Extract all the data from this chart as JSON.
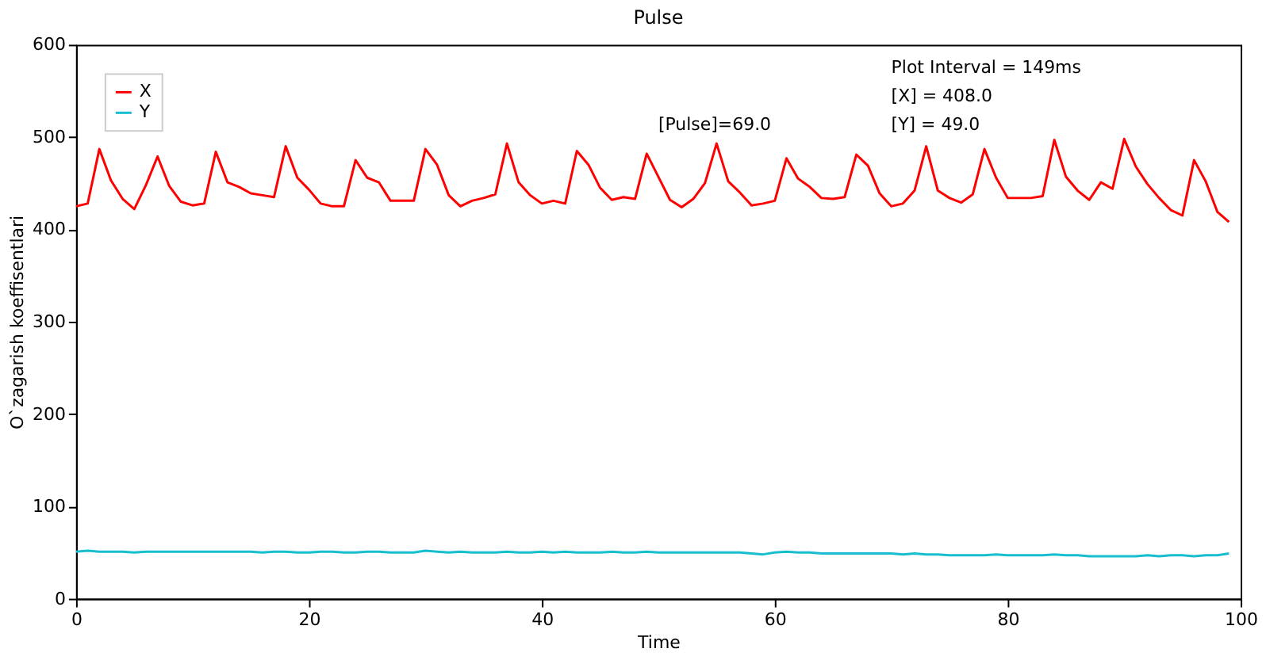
{
  "chart_data": {
    "type": "line",
    "title": "Pulse",
    "xlabel": "Time",
    "ylabel": "O`zagarish koeffisentlari",
    "x": [
      0,
      1,
      2,
      3,
      4,
      5,
      6,
      7,
      8,
      9,
      10,
      11,
      12,
      13,
      14,
      15,
      16,
      17,
      18,
      19,
      20,
      21,
      22,
      23,
      24,
      25,
      26,
      27,
      28,
      29,
      30,
      31,
      32,
      33,
      34,
      35,
      36,
      37,
      38,
      39,
      40,
      41,
      42,
      43,
      44,
      45,
      46,
      47,
      48,
      49,
      50,
      51,
      52,
      53,
      54,
      55,
      56,
      57,
      58,
      59,
      60,
      61,
      62,
      63,
      64,
      65,
      66,
      67,
      68,
      69,
      70,
      71,
      72,
      73,
      74,
      75,
      76,
      77,
      78,
      79,
      80,
      81,
      82,
      83,
      84,
      85,
      86,
      87,
      88,
      89,
      90,
      91,
      92,
      93,
      94,
      95,
      96,
      97,
      98,
      99
    ],
    "series": [
      {
        "name": "X",
        "color": "#ff0000",
        "values": [
          425,
          428,
          487,
          453,
          433,
          422,
          448,
          479,
          447,
          430,
          426,
          428,
          484,
          451,
          446,
          439,
          437,
          435,
          490,
          456,
          443,
          428,
          425,
          425,
          475,
          456,
          451,
          431,
          431,
          431,
          487,
          470,
          437,
          425,
          431,
          434,
          438,
          493,
          451,
          437,
          428,
          431,
          428,
          485,
          470,
          445,
          432,
          435,
          433,
          482,
          457,
          432,
          424,
          433,
          450,
          493,
          452,
          440,
          426,
          428,
          431,
          477,
          455,
          446,
          434,
          433,
          435,
          481,
          469,
          439,
          425,
          428,
          442,
          490,
          442,
          434,
          429,
          438,
          487,
          456,
          434,
          434,
          434,
          436,
          497,
          457,
          442,
          432,
          451,
          444,
          498,
          468,
          449,
          434,
          421,
          415,
          475,
          452,
          419,
          408
        ]
      },
      {
        "name": "Y",
        "color": "#17becf",
        "values": [
          51,
          52,
          51,
          51,
          51,
          50,
          51,
          51,
          51,
          51,
          51,
          51,
          51,
          51,
          51,
          51,
          50,
          51,
          51,
          50,
          50,
          51,
          51,
          50,
          50,
          51,
          51,
          50,
          50,
          50,
          52,
          51,
          50,
          51,
          50,
          50,
          50,
          51,
          50,
          50,
          51,
          50,
          51,
          50,
          50,
          50,
          51,
          50,
          50,
          51,
          50,
          50,
          50,
          50,
          50,
          50,
          50,
          50,
          49,
          48,
          50,
          51,
          50,
          50,
          49,
          49,
          49,
          49,
          49,
          49,
          49,
          48,
          49,
          48,
          48,
          47,
          47,
          47,
          47,
          48,
          47,
          47,
          47,
          47,
          48,
          47,
          47,
          46,
          46,
          46,
          46,
          46,
          47,
          46,
          47,
          47,
          46,
          47,
          47,
          49
        ]
      }
    ],
    "xlim": [
      0,
      100
    ],
    "ylim": [
      0,
      600
    ],
    "xticks": [
      0,
      20,
      40,
      60,
      80,
      100
    ],
    "yticks": [
      0,
      100,
      200,
      300,
      400,
      500,
      600
    ],
    "grid": false,
    "legend": "top left",
    "annotations": [
      "Plot Interval = 149ms",
      "[X] = 408.0",
      "[Y] = 49.0",
      "[Pulse]=69.0"
    ]
  }
}
